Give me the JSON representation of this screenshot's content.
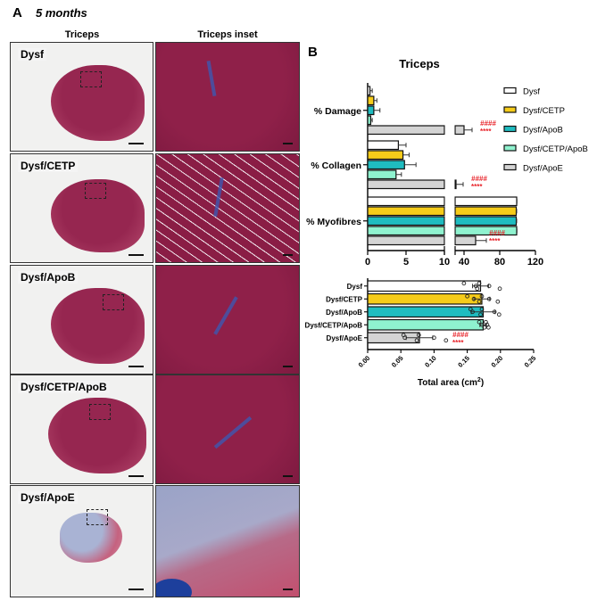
{
  "figure": {
    "panel_a": {
      "letter": "A",
      "subtitle": "5 months",
      "column_headers": [
        "Triceps",
        "Triceps inset"
      ],
      "rows": [
        {
          "label": "Dysf",
          "inset_style": "mostly intact muscle, minor fibrosis"
        },
        {
          "label": "Dysf/CETP",
          "inset_style": "intact fibers, focal fibrosis"
        },
        {
          "label": "Dysf/ApoB",
          "inset_style": "intact muscle"
        },
        {
          "label": "Dysf/CETP/ApoB",
          "inset_style": "intact muscle"
        },
        {
          "label": "Dysf/ApoE",
          "inset_style": "extensive damage / fat infiltration"
        }
      ]
    },
    "panel_b": {
      "letter": "B"
    }
  },
  "colors": {
    "Dysf": "#ffffff",
    "Dysf/CETP": "#f6cc1a",
    "Dysf/ApoB": "#1fbcc0",
    "Dysf/CETP/ApoB": "#8ff2cf",
    "Dysf/ApoE": "#d4d4d4",
    "significance": "#e8232a"
  },
  "chart_data": [
    {
      "type": "bar",
      "orientation": "horizontal",
      "title": "Triceps",
      "categories": [
        "% Damage",
        "% Collagen",
        "% Myofibres"
      ],
      "xlabel": "",
      "ylabel": "",
      "x_axis": {
        "broken": true,
        "segment1": [
          0,
          10
        ],
        "segment2": [
          30,
          120
        ],
        "ticks": [
          "0",
          "5",
          "10",
          "40",
          "80",
          "120"
        ]
      },
      "legend": {
        "position": "right",
        "entries": [
          "Dysf",
          "Dysf/CETP",
          "Dysf/ApoB",
          "Dysf/CETP/ApoB",
          "Dysf/ApoE"
        ]
      },
      "series": [
        {
          "name": "Dysf",
          "values": [
            0.3,
            4.0,
            99
          ],
          "errors": [
            0.3,
            1.0,
            0.3
          ]
        },
        {
          "name": "Dysf/CETP",
          "values": [
            0.8,
            4.6,
            98.5
          ],
          "errors": [
            0.4,
            0.8,
            0.5
          ]
        },
        {
          "name": "Dysf/ApoB",
          "values": [
            0.8,
            4.8,
            98.5
          ],
          "errors": [
            0.8,
            1.5,
            0.5
          ]
        },
        {
          "name": "Dysf/CETP/ApoB",
          "values": [
            0.4,
            3.7,
            99
          ],
          "errors": [
            0.2,
            0.7,
            0.3
          ]
        },
        {
          "name": "Dysf/ApoE",
          "values": [
            40,
            31,
            53
          ],
          "errors": [
            9,
            8,
            12
          ]
        }
      ],
      "annotations": [
        {
          "category": "% Damage",
          "series": "Dysf/ApoE",
          "text": [
            "####",
            "****"
          ]
        },
        {
          "category": "% Collagen",
          "series": "Dysf/ApoE",
          "text": [
            "####",
            "****"
          ]
        },
        {
          "category": "% Myofibres",
          "series": "Dysf/ApoE",
          "text": [
            "####",
            "****"
          ]
        }
      ],
      "grid": false
    },
    {
      "type": "bar",
      "orientation": "horizontal",
      "title": "",
      "categories": [
        "Dysf",
        "Dysf/CETP",
        "Dysf/ApoB",
        "Dysf/CETP/ApoB",
        "Dysf/ApoE"
      ],
      "values": [
        0.17,
        0.172,
        0.174,
        0.174,
        0.078
      ],
      "errors": [
        0.012,
        0.012,
        0.018,
        0.005,
        0.02
      ],
      "points": [
        [
          0.145,
          0.163,
          0.165,
          0.168,
          0.183,
          0.199
        ],
        [
          0.15,
          0.16,
          0.168,
          0.172,
          0.183,
          0.196
        ],
        [
          0.155,
          0.158,
          0.17,
          0.172,
          0.191,
          0.198
        ],
        [
          0.168,
          0.172,
          0.176,
          0.178,
          0.18,
          0.182
        ],
        [
          0.054,
          0.056,
          0.074,
          0.077,
          0.1,
          0.118
        ]
      ],
      "xlabel": "Total area (cm²)",
      "xlabel_base": "Total area (cm",
      "xlabel_sup": "2",
      "xlabel_end": ")",
      "ylabel": "",
      "xlim": [
        0,
        0.25
      ],
      "x_ticks": [
        "0.00",
        "0.05",
        "0.10",
        "0.15",
        "0.20",
        "0.25"
      ],
      "annotations": [
        {
          "category": "Dysf/ApoE",
          "text": [
            "####",
            "****"
          ]
        }
      ],
      "grid": false
    }
  ]
}
